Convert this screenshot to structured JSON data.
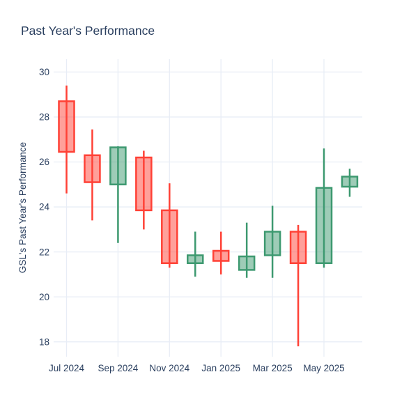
{
  "title": "Past Year's Performance",
  "colors": {
    "background": "#FFFFFF",
    "text": "#2A3F5F",
    "grid": "#E8EDF6",
    "increasing_line": "#3D9970",
    "decreasing_line": "#FF4136",
    "body_fill_opacity": 0.5
  },
  "chart_data": {
    "type": "candlestick",
    "title": "Past Year's Performance",
    "xlabel": "",
    "ylabel": "GSL's Past Year's Performance",
    "categories": [
      "Jul 2024",
      "Aug 2024",
      "Sep 2024",
      "Oct 2024",
      "Nov 2024",
      "Dec 2024",
      "Jan 2025",
      "Feb 2025",
      "Mar 2025",
      "Apr 2025",
      "May 2025",
      "Jun 2025"
    ],
    "ohlc": [
      {
        "month": "Jul 2024",
        "open": 28.7,
        "high": 29.4,
        "low": 24.6,
        "close": 26.45,
        "direction": "decreasing"
      },
      {
        "month": "Aug 2024",
        "open": 26.3,
        "high": 27.45,
        "low": 23.4,
        "close": 25.1,
        "direction": "decreasing"
      },
      {
        "month": "Sep 2024",
        "open": 25.0,
        "high": 26.7,
        "low": 22.4,
        "close": 26.65,
        "direction": "increasing"
      },
      {
        "month": "Oct 2024",
        "open": 26.2,
        "high": 26.5,
        "low": 23.0,
        "close": 23.85,
        "direction": "decreasing"
      },
      {
        "month": "Nov 2024",
        "open": 23.85,
        "high": 25.05,
        "low": 21.3,
        "close": 21.5,
        "direction": "decreasing"
      },
      {
        "month": "Dec 2024",
        "open": 21.5,
        "high": 22.9,
        "low": 20.9,
        "close": 21.85,
        "direction": "increasing"
      },
      {
        "month": "Jan 2025",
        "open": 22.05,
        "high": 22.9,
        "low": 21.0,
        "close": 21.6,
        "direction": "decreasing"
      },
      {
        "month": "Feb 2025",
        "open": 21.2,
        "high": 23.3,
        "low": 20.85,
        "close": 21.8,
        "direction": "increasing"
      },
      {
        "month": "Mar 2025",
        "open": 21.85,
        "high": 24.05,
        "low": 20.85,
        "close": 22.9,
        "direction": "increasing"
      },
      {
        "month": "Apr 2025",
        "open": 22.9,
        "high": 23.2,
        "low": 17.8,
        "close": 21.5,
        "direction": "decreasing"
      },
      {
        "month": "May 2025",
        "open": 21.5,
        "high": 26.6,
        "low": 21.3,
        "close": 24.85,
        "direction": "increasing"
      },
      {
        "month": "Jun 2025",
        "open": 24.9,
        "high": 25.7,
        "low": 24.45,
        "close": 25.35,
        "direction": "increasing"
      }
    ],
    "x_tick_labels": [
      "Jul 2024",
      "Sep 2024",
      "Nov 2024",
      "Jan 2025",
      "Mar 2025",
      "May 2025"
    ],
    "y_ticks": [
      18,
      20,
      22,
      24,
      26,
      28,
      30
    ],
    "ylim": [
      17.34,
      30.57
    ],
    "grid": true,
    "legend": false
  }
}
